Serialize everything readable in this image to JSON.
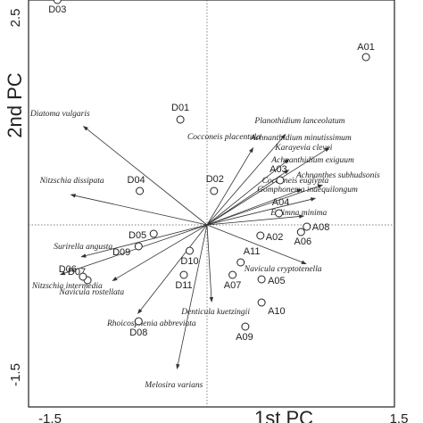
{
  "chart_data": {
    "type": "scatter",
    "title": "",
    "xlabel": "1st PC",
    "ylabel": "2nd PC",
    "xlim": [
      -1.5,
      1.5
    ],
    "ylim": [
      -1.5,
      2.5
    ],
    "x_ticks": [
      "-1.5",
      "1.5"
    ],
    "y_ticks": [
      "2.5",
      "-1.5"
    ],
    "grid": false,
    "sites": [
      {
        "label": "D03",
        "x": -1.29,
        "y": 2.52
      },
      {
        "label": "A01",
        "x": 1.37,
        "y": 1.88
      },
      {
        "label": "D01",
        "x": -0.23,
        "y": 1.18
      },
      {
        "label": "D02",
        "x": 0.06,
        "y": 0.38
      },
      {
        "label": "D04",
        "x": -0.58,
        "y": 0.38
      },
      {
        "label": "A03",
        "x": 0.63,
        "y": 0.5
      },
      {
        "label": "A04",
        "x": 0.62,
        "y": 0.13
      },
      {
        "label": "A08",
        "x": 0.86,
        "y": -0.02
      },
      {
        "label": "A06",
        "x": 0.81,
        "y": -0.08
      },
      {
        "label": "A02",
        "x": 0.46,
        "y": -0.12
      },
      {
        "label": "D05",
        "x": -0.46,
        "y": -0.1
      },
      {
        "label": "D09",
        "x": -0.59,
        "y": -0.24
      },
      {
        "label": "D07",
        "x": -1.03,
        "y": -0.62
      },
      {
        "label": "D06",
        "x": -1.07,
        "y": -0.58
      },
      {
        "label": "D10",
        "x": -0.15,
        "y": -0.29
      },
      {
        "label": "D11",
        "x": -0.2,
        "y": -0.56
      },
      {
        "label": "A11",
        "x": 0.29,
        "y": -0.42
      },
      {
        "label": "A07",
        "x": 0.22,
        "y": -0.56
      },
      {
        "label": "A05",
        "x": 0.47,
        "y": -0.61
      },
      {
        "label": "A10",
        "x": 0.47,
        "y": -0.87
      },
      {
        "label": "D08",
        "x": -0.59,
        "y": -1.08
      },
      {
        "label": "A09",
        "x": 0.33,
        "y": -1.14
      }
    ],
    "species": [
      {
        "name": "Diatoma vulgaris",
        "x": -1.07,
        "y": 1.11
      },
      {
        "name": "Planothidium lanceolatum",
        "x": 0.68,
        "y": 1.02
      },
      {
        "name": "Cocconeis placentula",
        "x": 0.4,
        "y": 0.87
      },
      {
        "name": "Achnanthidium minutissimum",
        "x": 1.06,
        "y": 0.87
      },
      {
        "name": "Karayevia clevei",
        "x": 0.71,
        "y": 0.74
      },
      {
        "name": "Achnanthidium exiguum",
        "x": 0.71,
        "y": 0.62
      },
      {
        "name": "Achnanthes subhudsonis",
        "x": 1.0,
        "y": 0.45
      },
      {
        "name": "Cocconeis euglypta",
        "x": 0.82,
        "y": 0.4
      },
      {
        "name": "Gomphonema inaequilongum",
        "x": 0.94,
        "y": 0.3
      },
      {
        "name": "Eolimna minima",
        "x": 0.84,
        "y": 0.1
      },
      {
        "name": "Nitzschia dissipata",
        "x": -1.18,
        "y": 0.34
      },
      {
        "name": "Navicula cryptotenella",
        "x": 0.86,
        "y": -0.44
      },
      {
        "name": "Surirella angusta",
        "x": -1.09,
        "y": -0.36
      },
      {
        "name": "Nitzschia intermedia",
        "x": -1.27,
        "y": -0.56
      },
      {
        "name": "Navicula rostellata",
        "x": -0.82,
        "y": -0.63
      },
      {
        "name": "Denticula kuetzingii",
        "x": 0.04,
        "y": -0.87
      },
      {
        "name": "Rhoicosphenia abbreviata",
        "x": -0.6,
        "y": -1.0
      },
      {
        "name": "Melosira varians",
        "x": -0.26,
        "y": -1.62
      }
    ]
  }
}
